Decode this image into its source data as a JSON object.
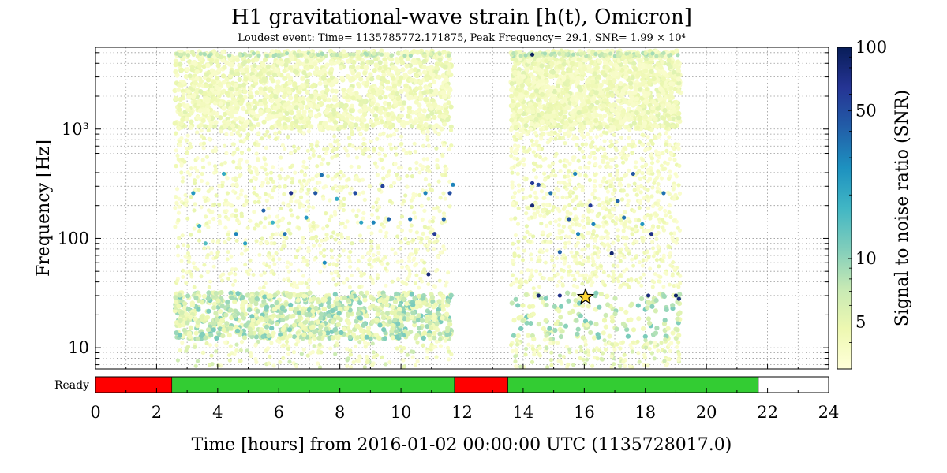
{
  "chart_data": {
    "type": "scatter",
    "title": "H1 gravitational-wave strain [h(t), Omicron]",
    "subtitle": "Loudest event: Time= 1135785772.171875, Peak Frequency= 29.1, SNR= 1.99 × 10⁴",
    "xlabel": "Time [hours] from 2016-01-02 00:00:00 UTC (1135728017.0)",
    "ylabel": "Frequency [Hz]",
    "xlim": [
      0,
      24
    ],
    "ylim": [
      6.4,
      5600
    ],
    "yscale": "log",
    "x_ticks": [
      "0",
      "2",
      "4",
      "6",
      "8",
      "10",
      "12",
      "14",
      "16",
      "18",
      "20",
      "22",
      "24"
    ],
    "y_ticks": [
      {
        "value": 10,
        "label": "10"
      },
      {
        "value": 100,
        "label": "100"
      },
      {
        "value": 1000,
        "label": "10³"
      }
    ],
    "grid": true,
    "colorbar": {
      "label": "Signal to noise ratio (SNR)",
      "scale": "log",
      "range": [
        3,
        100
      ],
      "ticks": [
        {
          "value": 5,
          "label": "5"
        },
        {
          "value": 10,
          "label": "10"
        },
        {
          "value": 50,
          "label": "50"
        },
        {
          "value": 100,
          "label": "100"
        }
      ],
      "colors": [
        "#ffffd9",
        "#edf8b1",
        "#c7e9b4",
        "#7fcdbb",
        "#41b6c4",
        "#1d91c0",
        "#225ea8",
        "#253494",
        "#081d58"
      ]
    },
    "segments": [
      {
        "start": 2.5,
        "end": 11.75
      },
      {
        "start": 13.5,
        "end": 19.25
      }
    ],
    "loudest_event": {
      "x": 16.04,
      "y": 29.1,
      "snr": 19900
    },
    "highlighted_events": [
      {
        "x": 3.2,
        "y": 260,
        "snr": 25
      },
      {
        "x": 3.4,
        "y": 130,
        "snr": 18
      },
      {
        "x": 3.6,
        "y": 90,
        "snr": 15
      },
      {
        "x": 4.2,
        "y": 390,
        "snr": 20
      },
      {
        "x": 4.6,
        "y": 110,
        "snr": 30
      },
      {
        "x": 4.9,
        "y": 90,
        "snr": 22
      },
      {
        "x": 5.5,
        "y": 180,
        "snr": 40
      },
      {
        "x": 5.8,
        "y": 140,
        "snr": 18
      },
      {
        "x": 6.2,
        "y": 110,
        "snr": 35
      },
      {
        "x": 6.4,
        "y": 260,
        "snr": 70
      },
      {
        "x": 6.9,
        "y": 155,
        "snr": 25
      },
      {
        "x": 7.2,
        "y": 260,
        "snr": 45
      },
      {
        "x": 7.4,
        "y": 380,
        "snr": 35
      },
      {
        "x": 7.5,
        "y": 60,
        "snr": 28
      },
      {
        "x": 7.9,
        "y": 230,
        "snr": 20
      },
      {
        "x": 8.5,
        "y": 260,
        "snr": 50
      },
      {
        "x": 8.7,
        "y": 140,
        "snr": 22
      },
      {
        "x": 9.1,
        "y": 140,
        "snr": 30
      },
      {
        "x": 9.4,
        "y": 300,
        "snr": 55
      },
      {
        "x": 9.6,
        "y": 150,
        "snr": 40
      },
      {
        "x": 10.3,
        "y": 150,
        "snr": 35
      },
      {
        "x": 10.8,
        "y": 260,
        "snr": 30
      },
      {
        "x": 10.9,
        "y": 47,
        "snr": 80
      },
      {
        "x": 11.1,
        "y": 110,
        "snr": 60
      },
      {
        "x": 11.4,
        "y": 150,
        "snr": 40
      },
      {
        "x": 11.6,
        "y": 260,
        "snr": 50
      },
      {
        "x": 11.7,
        "y": 310,
        "snr": 30
      },
      {
        "x": 14.3,
        "y": 200,
        "snr": 80
      },
      {
        "x": 14.5,
        "y": 310,
        "snr": 50
      },
      {
        "x": 14.5,
        "y": 30,
        "snr": 85
      },
      {
        "x": 14.9,
        "y": 260,
        "snr": 35
      },
      {
        "x": 15.2,
        "y": 30,
        "snr": 70
      },
      {
        "x": 15.2,
        "y": 75,
        "snr": 40
      },
      {
        "x": 15.5,
        "y": 150,
        "snr": 45
      },
      {
        "x": 15.7,
        "y": 390,
        "snr": 30
      },
      {
        "x": 16.2,
        "y": 200,
        "snr": 60
      },
      {
        "x": 16.3,
        "y": 135,
        "snr": 30
      },
      {
        "x": 16.9,
        "y": 73,
        "snr": 85
      },
      {
        "x": 17.1,
        "y": 220,
        "snr": 40
      },
      {
        "x": 17.3,
        "y": 155,
        "snr": 35
      },
      {
        "x": 17.6,
        "y": 390,
        "snr": 45
      },
      {
        "x": 17.9,
        "y": 135,
        "snr": 25
      },
      {
        "x": 18.1,
        "y": 30,
        "snr": 75
      },
      {
        "x": 18.2,
        "y": 110,
        "snr": 70
      },
      {
        "x": 18.6,
        "y": 260,
        "snr": 35
      },
      {
        "x": 19.0,
        "y": 30,
        "snr": 90
      },
      {
        "x": 19.1,
        "y": 28,
        "snr": 75
      },
      {
        "x": 14.3,
        "y": 4800,
        "snr": 95
      },
      {
        "x": 14.3,
        "y": 320,
        "snr": 60
      },
      {
        "x": 15.8,
        "y": 110,
        "snr": 30
      }
    ],
    "state_bar": {
      "label": "Ready",
      "segments": [
        {
          "start": 0,
          "end": 2.5,
          "state": "off"
        },
        {
          "start": 2.5,
          "end": 11.75,
          "state": "on"
        },
        {
          "start": 11.75,
          "end": 13.5,
          "state": "off"
        },
        {
          "start": 13.5,
          "end": 21.7,
          "state": "on"
        },
        {
          "start": 21.7,
          "end": 24,
          "state": "unknown"
        }
      ],
      "colors": {
        "on": "#33cc33",
        "off": "#ff0000",
        "unknown": "#ffffff"
      }
    }
  }
}
